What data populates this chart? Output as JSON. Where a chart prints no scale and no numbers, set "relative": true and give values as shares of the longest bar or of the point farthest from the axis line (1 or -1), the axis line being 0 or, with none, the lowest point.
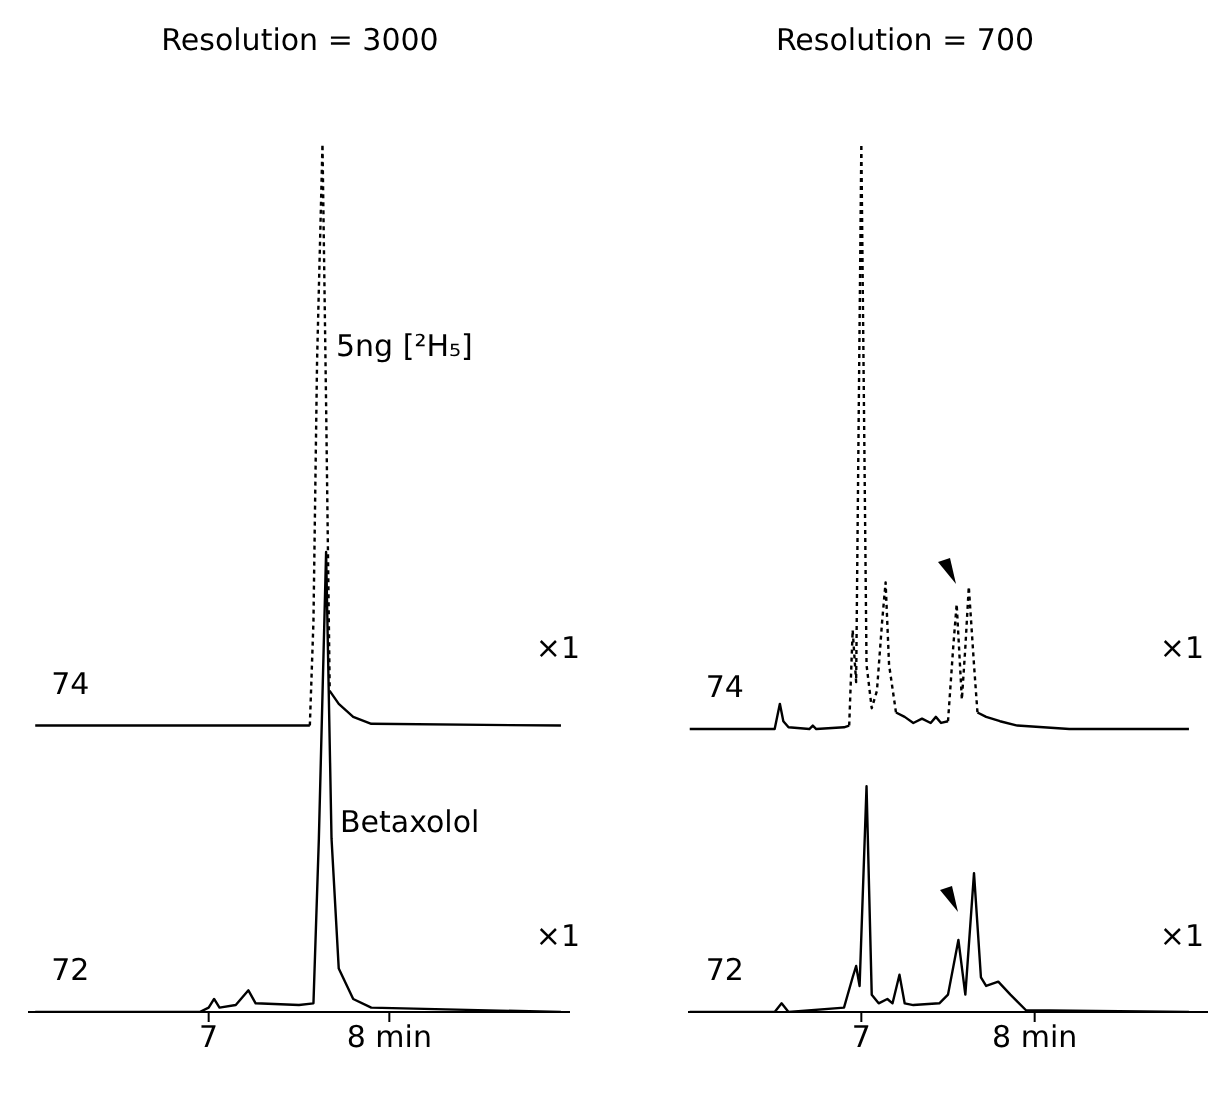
{
  "chart_data": [
    {
      "type": "line",
      "title": "Resolution = 3000",
      "relative": true,
      "xlim": [
        6,
        9
      ],
      "xticks": [
        7,
        {
          "value": 8,
          "label": "8 min"
        }
      ],
      "series": [
        {
          "name": "74",
          "color": "#000000",
          "line_style": "solid",
          "x": [
            6.04,
            7.0,
            7.55,
            7.56,
            7.6,
            7.67,
            7.72,
            7.8,
            7.9,
            8.95
          ],
          "values": [
            0.33,
            0.33,
            0.33,
            0.33,
            null,
            0.37,
            0.355,
            0.34,
            0.332,
            0.33
          ]
        },
        {
          "color": "#000000",
          "line_style": "dotted",
          "x": [
            7.56,
            7.58,
            7.6,
            7.63,
            7.65,
            7.67
          ],
          "values": [
            0.33,
            0.45,
            0.75,
            1,
            0.7,
            0.37
          ]
        },
        {
          "name": "72",
          "color": "#000000",
          "line_style": "solid",
          "x": [
            6.04,
            6.95,
            7.0,
            7.03,
            7.06,
            7.15,
            7.22,
            7.26,
            7.5,
            7.58,
            7.61,
            7.65,
            7.68,
            7.72,
            7.8,
            7.9,
            8.95
          ],
          "values": [
            0,
            0,
            0.005,
            0.015,
            0.005,
            0.008,
            0.025,
            0.01,
            0.008,
            0.01,
            0.2,
            0.53,
            0.2,
            0.05,
            0.015,
            0.005,
            0
          ]
        }
      ],
      "annotations": [
        "×1",
        "×1",
        "5ng [²H₅]",
        "Betaxolol"
      ]
    },
    {
      "type": "line",
      "title": "Resolution = 700",
      "relative": true,
      "xlim": [
        6,
        9
      ],
      "xticks": [
        7,
        {
          "value": 8,
          "label": "8 min"
        }
      ],
      "series": [
        {
          "name": "74",
          "color": "#000000",
          "line_style": "solid",
          "x": [
            6.01,
            6.5,
            6.53,
            6.55,
            6.58,
            6.7,
            6.72,
            6.74,
            6.9,
            6.93,
            6.95,
            7.2,
            7.25,
            7.3,
            7.35,
            7.4,
            7.43,
            7.46,
            7.5,
            7.52,
            7.67,
            7.72,
            7.8,
            7.9,
            8.2,
            8.89
          ],
          "values": [
            0.326,
            0.326,
            0.355,
            0.335,
            0.328,
            0.326,
            0.33,
            0.326,
            0.328,
            0.33,
            null,
            0.345,
            0.34,
            0.333,
            0.338,
            0.333,
            0.34,
            0.333,
            0.335,
            null,
            0.345,
            0.34,
            0.335,
            0.33,
            0.326,
            0.326
          ]
        },
        {
          "color": "#000000",
          "line_style": "dotted",
          "x": [
            6.93,
            6.95,
            6.97,
            7.0,
            7.03,
            7.06,
            7.09,
            7.12,
            7.14,
            7.16,
            7.2,
            7.22,
            7.5,
            7.53,
            7.55,
            7.58,
            7.6,
            7.62,
            7.65,
            7.67
          ],
          "values": [
            0.33,
            0.44,
            0.38,
            1,
            0.4,
            0.35,
            0.37,
            0.45,
            0.495,
            0.4,
            0.345,
            null,
            0.335,
            0.42,
            0.47,
            0.36,
            0.42,
            0.49,
            0.4,
            0.345
          ]
        },
        {
          "name": "72",
          "color": "#000000",
          "line_style": "solid",
          "x": [
            6.01,
            6.5,
            6.54,
            6.58,
            6.9,
            6.95,
            6.97,
            6.99,
            7.03,
            7.06,
            7.1,
            7.15,
            7.18,
            7.22,
            7.25,
            7.3,
            7.45,
            7.5,
            7.56,
            7.6,
            7.65,
            7.69,
            7.72,
            7.79,
            7.86,
            7.95,
            8.89
          ],
          "values": [
            0,
            0,
            0.01,
            0,
            0.005,
            0.04,
            0.053,
            0.03,
            0.26,
            0.02,
            0.01,
            0.015,
            0.01,
            0.043,
            0.01,
            0.008,
            0.01,
            0.02,
            0.083,
            0.02,
            0.16,
            0.04,
            0.03,
            0.035,
            0.02,
            0.002,
            0
          ]
        }
      ],
      "annotations": [
        "×1",
        "×1"
      ]
    }
  ]
}
